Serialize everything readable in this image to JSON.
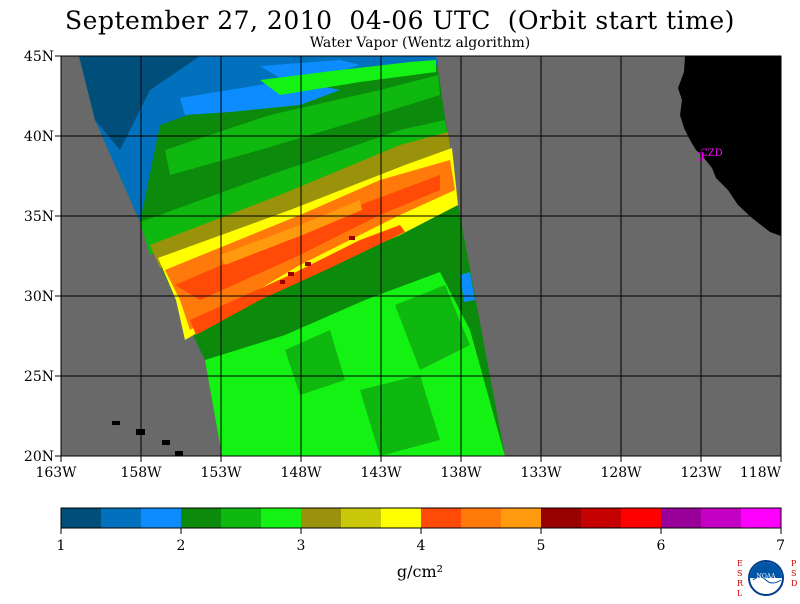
{
  "title": "September 27, 2010  04-06 UTC  (Orbit start time)",
  "subtitle": "Water Vapor (Wentz algorithm)",
  "map": {
    "lat_labels": [
      "45N",
      "40N",
      "35N",
      "30N",
      "25N",
      "20N"
    ],
    "lon_labels": [
      "163W",
      "158W",
      "153W",
      "148W",
      "143W",
      "138W",
      "133W",
      "128W",
      "123W",
      "118W"
    ],
    "station_label": "CZD",
    "colors": {
      "no_data": "#696969",
      "land": "#000000",
      "station": "#ff00ff",
      "grid": "#000000"
    }
  },
  "colorbar": {
    "tick_labels": [
      "1",
      "2",
      "3",
      "4",
      "5",
      "6",
      "7"
    ],
    "unit_label": "g/cm²",
    "colors": [
      "#024e7a",
      "#0271bd",
      "#0c8cff",
      "#0b8a0b",
      "#0fb80f",
      "#14f214",
      "#9a920a",
      "#c9c90a",
      "#ffff00",
      "#ff4a08",
      "#ff7a0b",
      "#ff9a0e",
      "#990000",
      "#c50000",
      "#ff0000",
      "#99009a",
      "#c500c5",
      "#ff00ff"
    ]
  },
  "logo": {
    "left_letters": "ESRL",
    "right_letters": "PSD",
    "center_text": "NOAA"
  }
}
